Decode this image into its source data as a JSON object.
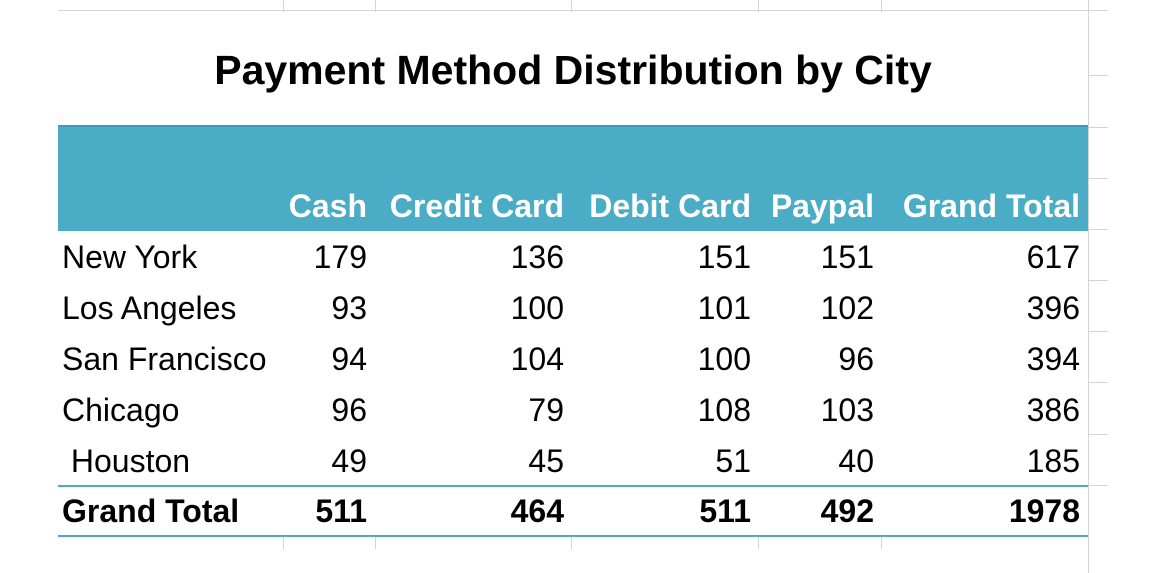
{
  "title": "Payment Method Distribution by City",
  "header": [
    "Cash",
    "Credit Card",
    "Debit Card",
    "Paypal",
    "Grand Total"
  ],
  "rows": [
    {
      "city": "New York",
      "values": [
        "179",
        "136",
        "151",
        "151",
        "617"
      ]
    },
    {
      "city": "Los Angeles",
      "values": [
        "93",
        "100",
        "101",
        "102",
        "396"
      ]
    },
    {
      "city": "San Francisco",
      "values": [
        "94",
        "104",
        "100",
        "96",
        "394"
      ]
    },
    {
      "city": "Chicago",
      "values": [
        "96",
        "79",
        "108",
        "103",
        "386"
      ]
    },
    {
      "city": " Houston",
      "values": [
        "49",
        "45",
        "51",
        "40",
        "185"
      ]
    }
  ],
  "total": {
    "label": "Grand Total",
    "values": [
      "511",
      "464",
      "511",
      "492",
      "1978"
    ]
  },
  "colors": {
    "header_fill": "#4bacc6",
    "header_text": "#ffffff",
    "rule": "#4bacc6"
  },
  "chart_data": {
    "type": "table",
    "title": "Payment Method Distribution by City",
    "columns": [
      "Cash",
      "Credit Card",
      "Debit Card",
      "Paypal",
      "Grand Total"
    ],
    "row_labels": [
      "New York",
      "Los Angeles",
      "San Francisco",
      "Chicago",
      "Houston",
      "Grand Total"
    ],
    "values": [
      [
        179,
        136,
        151,
        151,
        617
      ],
      [
        93,
        100,
        101,
        102,
        396
      ],
      [
        94,
        104,
        100,
        96,
        394
      ],
      [
        96,
        79,
        108,
        103,
        386
      ],
      [
        49,
        45,
        51,
        40,
        185
      ],
      [
        511,
        464,
        511,
        492,
        1978
      ]
    ]
  }
}
